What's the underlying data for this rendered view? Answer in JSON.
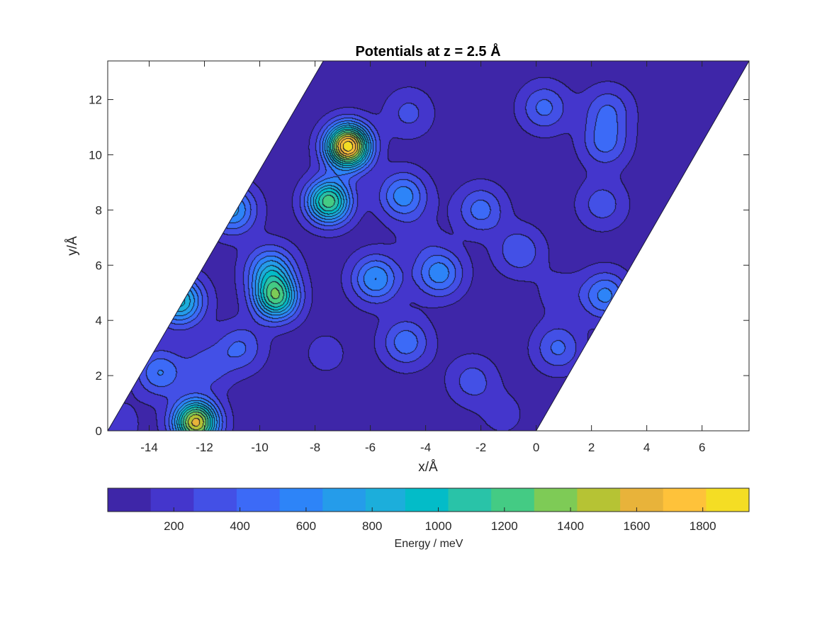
{
  "chart_data": {
    "type": "heatmap",
    "subtype": "filled-contour",
    "title": "Potentials at z = 2.5 Å",
    "xlabel": "x/Å",
    "ylabel": "y/Å",
    "xlim": [
      -15.5,
      7.7
    ],
    "ylim": [
      0,
      13.4
    ],
    "xticks": [
      -14,
      -12,
      -10,
      -8,
      -6,
      -4,
      -2,
      0,
      2,
      4,
      6
    ],
    "yticks": [
      0,
      2,
      4,
      6,
      8,
      10,
      12
    ],
    "domain": "parallelogram",
    "domain_vertices": [
      [
        -15.5,
        0
      ],
      [
        0,
        0
      ],
      [
        7.7,
        13.4
      ],
      [
        -7.7,
        13.4
      ]
    ],
    "background_energy": 60,
    "peaks": [
      {
        "x": -6.8,
        "y": 10.3,
        "energy": 1900
      },
      {
        "x": -7.5,
        "y": 8.3,
        "energy": 1250
      },
      {
        "x": -12.3,
        "y": 0.3,
        "energy": 1600
      },
      {
        "x": -9.4,
        "y": 4.8,
        "energy": 1150
      },
      {
        "x": -9.6,
        "y": 5.8,
        "energy": 700
      },
      {
        "x": -12.9,
        "y": 4.7,
        "energy": 950
      },
      {
        "x": -11.0,
        "y": 8.0,
        "energy": 700
      },
      {
        "x": -4.8,
        "y": 8.5,
        "energy": 600
      },
      {
        "x": -5.8,
        "y": 5.5,
        "energy": 650
      },
      {
        "x": -3.5,
        "y": 5.7,
        "energy": 600
      },
      {
        "x": -2.0,
        "y": 8.0,
        "energy": 450
      },
      {
        "x": -0.6,
        "y": 6.5,
        "energy": 380
      },
      {
        "x": 0.3,
        "y": 11.7,
        "energy": 430
      },
      {
        "x": 2.6,
        "y": 11.6,
        "energy": 380
      },
      {
        "x": 2.5,
        "y": 10.4,
        "energy": 420
      },
      {
        "x": 2.4,
        "y": 8.2,
        "energy": 340
      },
      {
        "x": 2.5,
        "y": 4.9,
        "energy": 560
      },
      {
        "x": 0.8,
        "y": 3.0,
        "energy": 420
      },
      {
        "x": -4.7,
        "y": 3.2,
        "energy": 480
      },
      {
        "x": -10.7,
        "y": 3.0,
        "energy": 400
      },
      {
        "x": -11.9,
        "y": 2.3,
        "energy": 330
      },
      {
        "x": -13.6,
        "y": 2.1,
        "energy": 520
      },
      {
        "x": -2.3,
        "y": 1.8,
        "energy": 330
      },
      {
        "x": -4.6,
        "y": 11.5,
        "energy": 300
      },
      {
        "x": -7.6,
        "y": 2.8,
        "energy": 180
      },
      {
        "x": -15.2,
        "y": 0.2,
        "energy": 230
      },
      {
        "x": -1.2,
        "y": 0.6,
        "energy": 180
      },
      {
        "x": 0.8,
        "y": 5.0,
        "energy": 180
      },
      {
        "x": -4.2,
        "y": 7.0,
        "energy": 160
      }
    ],
    "colorbar": {
      "label": "Energy / meV",
      "ticks": [
        200,
        400,
        600,
        800,
        1000,
        1200,
        1400,
        1600,
        1800
      ],
      "range": [
        0,
        1940
      ],
      "levels": [
        0,
        130,
        260,
        390,
        520,
        650,
        780,
        900,
        1030,
        1160,
        1290,
        1420,
        1550,
        1680,
        1810,
        1940
      ],
      "colors": [
        "#3e26a8",
        "#4436cc",
        "#4350e6",
        "#3c6af7",
        "#2d84f8",
        "#259cea",
        "#1caedb",
        "#03bcc8",
        "#29c3a8",
        "#44cb84",
        "#7ecb56",
        "#b6c334",
        "#e8b33a",
        "#fec23a",
        "#f4dd24",
        "#f9fb14"
      ]
    }
  }
}
